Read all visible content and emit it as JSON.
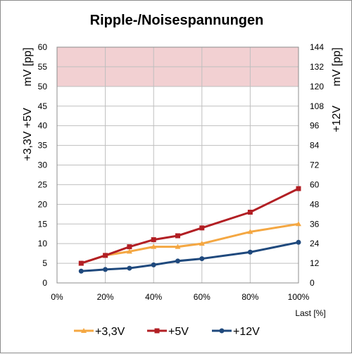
{
  "chart_data": {
    "type": "line",
    "title": "Ripple-/Noisespannungen",
    "xlabel": "Last [%]",
    "ylabel_left_unit": "mV [pp]",
    "ylabel_left": "+3,3V +5V",
    "ylabel_right_unit": "mV [pp]",
    "ylabel_right": "+12V",
    "x": [
      10,
      20,
      30,
      40,
      50,
      60,
      80,
      100
    ],
    "xlim": [
      0,
      100
    ],
    "x_ticks": [
      "0%",
      "20%",
      "40%",
      "60%",
      "80%",
      "100%"
    ],
    "ylim_left": [
      0,
      60
    ],
    "y_ticks_left": [
      "0",
      "5",
      "10",
      "15",
      "20",
      "25",
      "30",
      "35",
      "40",
      "45",
      "50",
      "55",
      "60"
    ],
    "ylim_right": [
      0,
      144
    ],
    "y_ticks_right": [
      "0",
      "12",
      "24",
      "36",
      "48",
      "60",
      "72",
      "84",
      "96",
      "108",
      "120",
      "132",
      "144"
    ],
    "limit_band_left": [
      50,
      60
    ],
    "grid": true,
    "legend_position": "bottom",
    "series": [
      {
        "name": "+3,3V",
        "axis": "left",
        "color": "#f4a742",
        "marker": "triangle",
        "values": [
          5,
          7,
          8,
          9.2,
          9.2,
          10,
          13,
          15
        ]
      },
      {
        "name": "+5V",
        "axis": "left",
        "color": "#b21f24",
        "marker": "square",
        "values": [
          5,
          7,
          9.2,
          11,
          12,
          14,
          18,
          24
        ]
      },
      {
        "name": "+12V",
        "axis": "right",
        "color": "#1f497d",
        "marker": "circle",
        "values": [
          7.2,
          8.2,
          9,
          11,
          13.4,
          14.8,
          18.8,
          24.8
        ]
      }
    ],
    "colors": {
      "band": "#f2d0d2",
      "grid": "#bfbfbf"
    }
  }
}
